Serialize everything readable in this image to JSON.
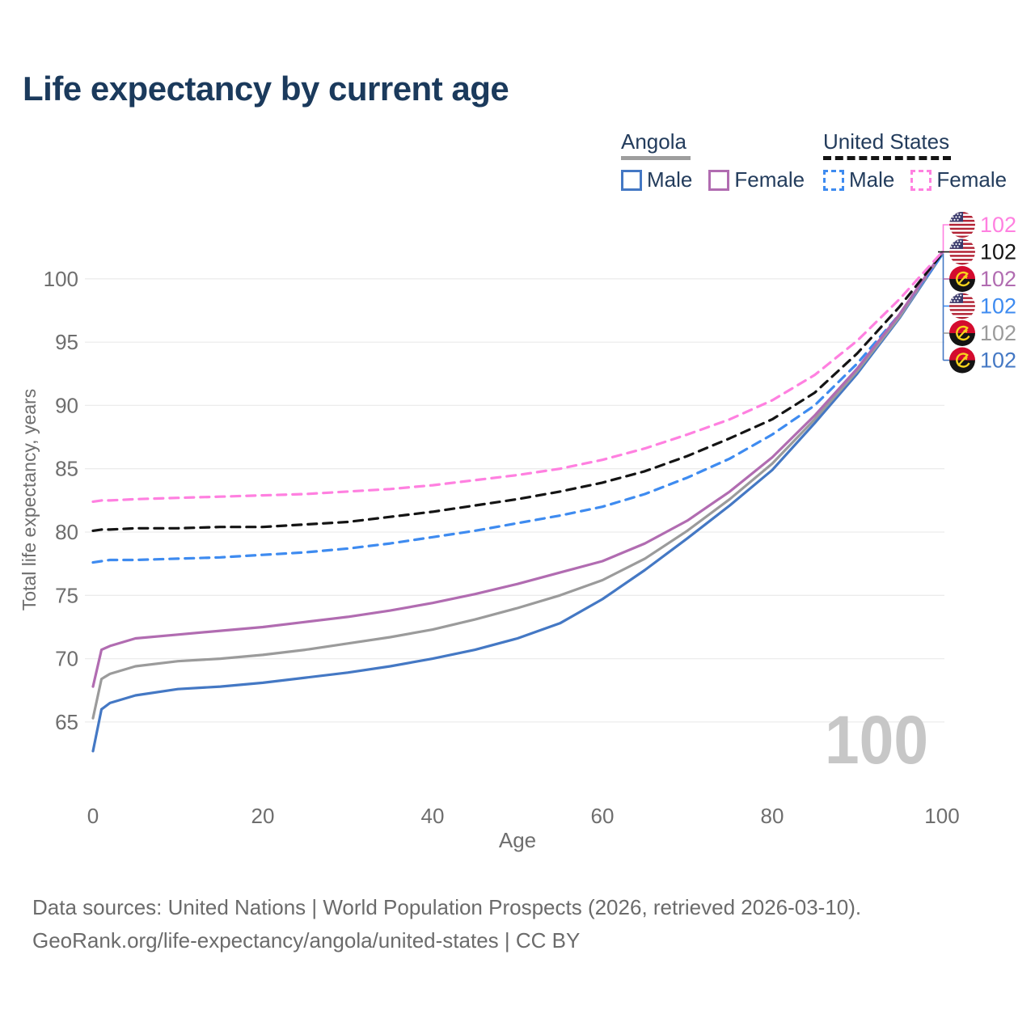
{
  "page": {
    "title": "Life expectancy by current age",
    "footer_line1": "Data sources: United Nations | World Population Prospects (2026, retrieved 2026-03-10).",
    "footer_line2": "GeoRank.org/life-expectancy/angola/united-states | CC BY"
  },
  "legend": {
    "groups": [
      {
        "label": "Angola",
        "line_style": "solid",
        "line_color": "#9e9e9e",
        "items": [
          {
            "label": "Male",
            "color": "#4478c4",
            "style": "solid"
          },
          {
            "label": "Female",
            "color": "#b16cb1",
            "style": "solid"
          }
        ]
      },
      {
        "label": "United States",
        "line_style": "dashed",
        "line_color": "#141414",
        "items": [
          {
            "label": "Male",
            "color": "#3e8bf0",
            "style": "dashed"
          },
          {
            "label": "Female",
            "color": "#ff80e0",
            "style": "dashed"
          }
        ]
      }
    ]
  },
  "chart_data": {
    "type": "line",
    "title": "Life expectancy by current age",
    "xlabel": "Age",
    "ylabel": "Total life expectancy, years",
    "x_ticks": [
      0,
      20,
      40,
      60,
      80,
      100
    ],
    "y_ticks": [
      65,
      70,
      75,
      80,
      85,
      90,
      95,
      100
    ],
    "xlim": [
      0,
      100
    ],
    "ylim": [
      62,
      103.6
    ],
    "grid": "horizontal-only",
    "age_counter_watermark": "100",
    "ages": [
      0,
      1,
      2,
      5,
      10,
      15,
      20,
      25,
      30,
      35,
      40,
      45,
      50,
      55,
      60,
      65,
      70,
      75,
      80,
      85,
      90,
      95,
      100
    ],
    "series": [
      {
        "name": "United States Female",
        "country": "United States",
        "sex": "Female",
        "color": "#ff80e0",
        "dash": "dashed",
        "flag": "us",
        "end_label": "102",
        "values": [
          82.4,
          82.5,
          82.5,
          82.6,
          82.7,
          82.8,
          82.9,
          83.0,
          83.2,
          83.4,
          83.7,
          84.1,
          84.5,
          85.0,
          85.7,
          86.6,
          87.7,
          88.9,
          90.4,
          92.4,
          95.1,
          98.4,
          102.1
        ]
      },
      {
        "name": "United States Both Sexes",
        "country": "United States",
        "sex": "Both",
        "color": "#141414",
        "dash": "dashed",
        "flag": "us",
        "end_label": "102",
        "values": [
          80.1,
          80.2,
          80.2,
          80.3,
          80.3,
          80.4,
          80.4,
          80.6,
          80.8,
          81.2,
          81.6,
          82.1,
          82.6,
          83.2,
          83.9,
          84.8,
          86.0,
          87.4,
          88.9,
          91.0,
          94.1,
          97.8,
          102.0
        ]
      },
      {
        "name": "Angola Female",
        "country": "Angola",
        "sex": "Female",
        "color": "#b16cb1",
        "dash": "solid",
        "flag": "ao",
        "end_label": "102",
        "values": [
          67.8,
          70.7,
          71.0,
          71.6,
          71.9,
          72.2,
          72.5,
          72.9,
          73.3,
          73.8,
          74.4,
          75.1,
          75.9,
          76.8,
          77.7,
          79.1,
          80.9,
          83.2,
          85.9,
          89.2,
          92.9,
          97.2,
          102.1
        ]
      },
      {
        "name": "United States Male",
        "country": "United States",
        "sex": "Male",
        "color": "#3e8bf0",
        "dash": "dashed",
        "flag": "us",
        "end_label": "102",
        "values": [
          77.6,
          77.7,
          77.8,
          77.8,
          77.9,
          78.0,
          78.2,
          78.4,
          78.7,
          79.1,
          79.6,
          80.1,
          80.7,
          81.3,
          82.0,
          83.0,
          84.3,
          85.8,
          87.7,
          90.0,
          93.3,
          97.2,
          101.9
        ]
      },
      {
        "name": "Angola Both Sexes",
        "country": "Angola",
        "sex": "Both",
        "color": "#9b9b9b",
        "dash": "solid",
        "flag": "ao",
        "end_label": "102",
        "values": [
          65.3,
          68.4,
          68.8,
          69.4,
          69.8,
          70.0,
          70.3,
          70.7,
          71.2,
          71.7,
          72.3,
          73.1,
          74.0,
          75.0,
          76.2,
          77.9,
          80.1,
          82.6,
          85.4,
          88.9,
          92.7,
          97.0,
          102.0
        ]
      },
      {
        "name": "Angola Male",
        "country": "Angola",
        "sex": "Male",
        "color": "#4478c4",
        "dash": "solid",
        "flag": "ao",
        "end_label": "102",
        "values": [
          62.7,
          66.0,
          66.5,
          67.1,
          67.6,
          67.8,
          68.1,
          68.5,
          68.9,
          69.4,
          70.0,
          70.7,
          71.6,
          72.8,
          74.7,
          77.0,
          79.5,
          82.1,
          84.9,
          88.6,
          92.5,
          96.9,
          101.9
        ]
      }
    ]
  },
  "colors": {
    "title": "#1b3a5c",
    "legend_text": "#233c5c",
    "axis_text": "#6e6e6e",
    "grid": "#ececec",
    "watermark": "#c7c7c7",
    "footer_text": "#6b6b6b"
  }
}
